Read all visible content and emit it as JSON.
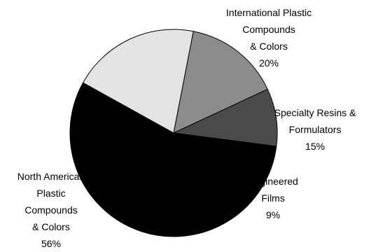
{
  "chart_data": {
    "type": "pie",
    "title": "",
    "slices": [
      {
        "name": "International Plastic Compounds & Colors",
        "label_lines": [
          "International Plastic",
          "Compounds",
          "& Colors"
        ],
        "percent_label": "20%",
        "value": 20,
        "color": "#e3e3e3"
      },
      {
        "name": "Specialty Resins & Formulators",
        "label_lines": [
          "Specialty Resins &",
          "Formulators"
        ],
        "percent_label": "15%",
        "value": 15,
        "color": "#8c8c8c"
      },
      {
        "name": "Engineered Films",
        "label_lines": [
          "Engineered",
          "Films"
        ],
        "percent_label": "9%",
        "value": 9,
        "color": "#4a4a4a"
      },
      {
        "name": "North American Plastic Compounds & Colors",
        "label_lines": [
          "North American",
          "Plastic",
          "Compounds",
          "& Colors"
        ],
        "percent_label": "56%",
        "value": 56,
        "color": "#000000"
      }
    ]
  }
}
